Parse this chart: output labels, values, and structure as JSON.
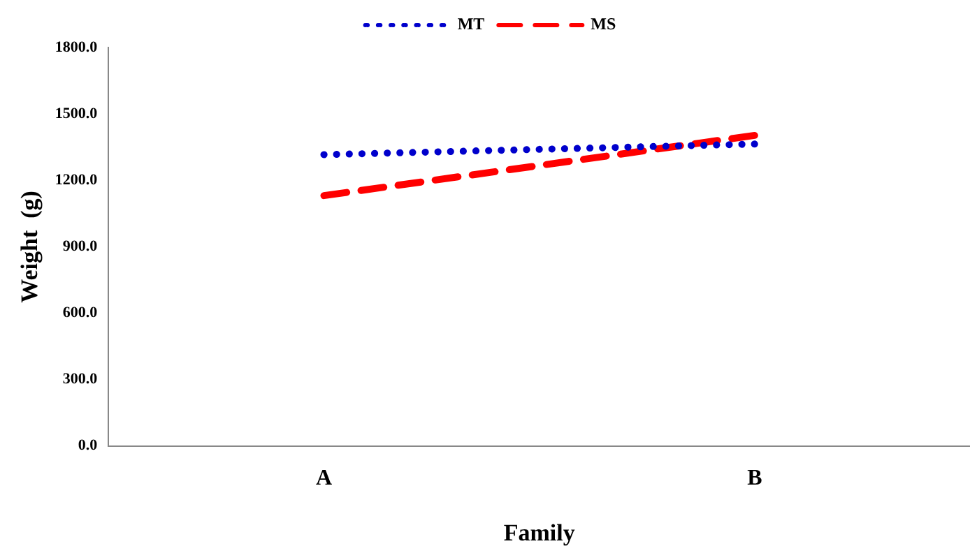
{
  "chart_data": {
    "type": "line",
    "xlabel": "Family",
    "ylabel": "Weight  (g)",
    "categories": [
      "A",
      "B"
    ],
    "series": [
      {
        "name": "MT",
        "color": "#0000cc",
        "values": [
          1316,
          1364
        ],
        "line_style": "dotted"
      },
      {
        "name": "MS",
        "color": "#ff0000",
        "values": [
          1131,
          1403
        ],
        "line_style": "dashed"
      }
    ],
    "ylim": [
      0,
      1800
    ],
    "yticks": [
      {
        "value": 0,
        "label": "0.0"
      },
      {
        "value": 300,
        "label": "300.0"
      },
      {
        "value": 600,
        "label": "600.0"
      },
      {
        "value": 900,
        "label": "900.0"
      },
      {
        "value": 1200,
        "label": "1200.0"
      },
      {
        "value": 1500,
        "label": "1500.0"
      },
      {
        "value": 1800,
        "label": "1800.0"
      }
    ],
    "grid": false,
    "legend": "top",
    "marker": "none"
  }
}
